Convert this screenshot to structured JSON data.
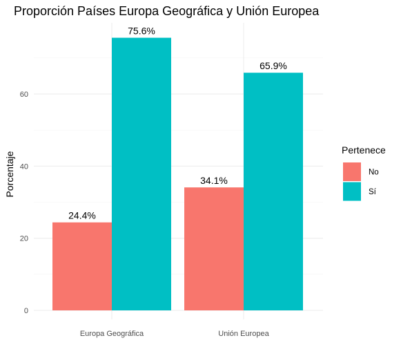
{
  "chart_data": {
    "type": "bar",
    "title": "Proporción Países Europa Geográfica y Unión Europea",
    "xlabel": "",
    "ylabel": "Porcentaje",
    "categories": [
      "Europa Geográfica",
      "Unión Europea"
    ],
    "series": [
      {
        "name": "No",
        "values": [
          24.4,
          34.1
        ],
        "labels": [
          "24.4%",
          "34.1%"
        ],
        "color": "#F8766D"
      },
      {
        "name": "Sí",
        "values": [
          75.6,
          65.9
        ],
        "labels": [
          "75.6%",
          "65.9%"
        ],
        "color": "#00BFC4"
      }
    ],
    "ylim": [
      0,
      79.4
    ],
    "yticks": [
      0,
      20,
      40,
      60
    ],
    "ytick_labels": [
      "0",
      "20",
      "40",
      "60"
    ],
    "grid": true,
    "legend": {
      "title": "Pertenece",
      "position": "right"
    }
  }
}
